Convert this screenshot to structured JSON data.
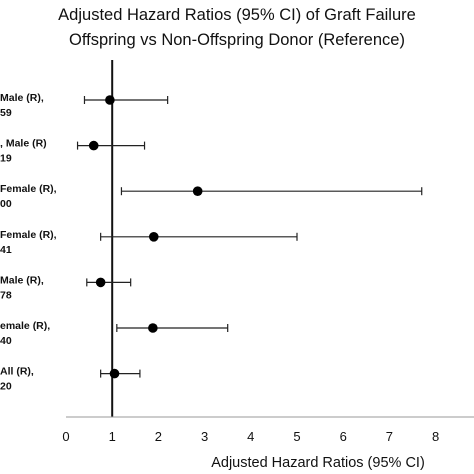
{
  "chart_data": {
    "type": "scatter",
    "title_line1": "Adjusted Hazard Ratios (95% CI) of Graft Failure",
    "title_line2": "Offspring vs Non-Offspring Donor (Reference)",
    "xlabel": "Adjusted Hazard Ratios (95% CI)",
    "xlim": [
      0,
      8
    ],
    "xticks": [
      "0",
      "1",
      "2",
      "3",
      "4",
      "5",
      "6",
      "7",
      "8"
    ],
    "reference_line": 1,
    "rows": [
      {
        "label_line1": "Male (R),",
        "label_line2": "59",
        "hr": 0.95,
        "ci_low": 0.4,
        "ci_high": 2.2
      },
      {
        "label_line1": ", Male (R)",
        "label_line2": "19",
        "hr": 0.6,
        "ci_low": 0.25,
        "ci_high": 1.7
      },
      {
        "label_line1": "Female (R),",
        "label_line2": "00",
        "hr": 2.85,
        "ci_low": 1.2,
        "ci_high": 7.7
      },
      {
        "label_line1": "Female (R),",
        "label_line2": "41",
        "hr": 1.9,
        "ci_low": 0.75,
        "ci_high": 5.0
      },
      {
        "label_line1": "Male (R),",
        "label_line2": "78",
        "hr": 0.75,
        "ci_low": 0.45,
        "ci_high": 1.4
      },
      {
        "label_line1": "emale (R),",
        "label_line2": "40",
        "hr": 1.88,
        "ci_low": 1.1,
        "ci_high": 3.5
      },
      {
        "label_line1": "All (R),",
        "label_line2": "20",
        "hr": 1.05,
        "ci_low": 0.75,
        "ci_high": 1.6
      }
    ]
  }
}
